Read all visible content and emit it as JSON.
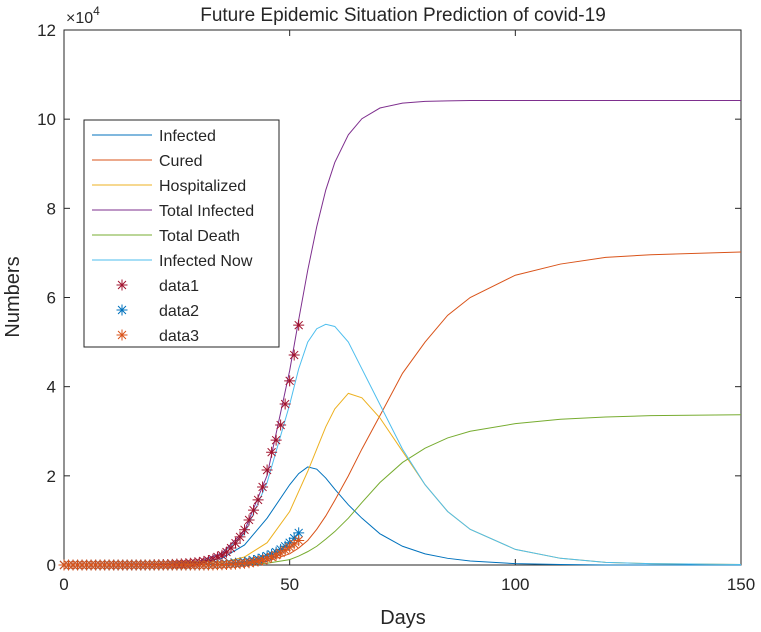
{
  "chart_data": {
    "type": "line",
    "title": "Future Epidemic Situation Prediction of covid-19",
    "x_label": "Days",
    "y_label": "Numbers",
    "y_multiplier": "×10",
    "y_multiplier_power": "4",
    "xlim": [
      0,
      150
    ],
    "ylim": [
      0,
      12
    ],
    "xticks": [
      0,
      50,
      100,
      150
    ],
    "yticks": [
      0,
      2,
      4,
      6,
      8,
      10,
      12
    ],
    "grid": false,
    "legend_position": "west",
    "x": [
      0,
      10,
      20,
      30,
      35,
      40,
      45,
      50,
      52,
      54,
      56,
      58,
      60,
      63,
      66,
      70,
      75,
      80,
      85,
      90,
      100,
      110,
      120,
      130,
      150
    ],
    "series": [
      {
        "name": "Infected",
        "color": "#0072BD",
        "values": [
          0,
          0,
          0,
          0.05,
          0.15,
          0.45,
          1.05,
          1.8,
          2.05,
          2.2,
          2.15,
          1.95,
          1.7,
          1.35,
          1.05,
          0.7,
          0.42,
          0.25,
          0.15,
          0.09,
          0.03,
          0.01,
          0,
          0,
          0
        ]
      },
      {
        "name": "Cured",
        "color": "#D95319",
        "values": [
          0,
          0,
          0,
          0,
          0,
          0.02,
          0.08,
          0.25,
          0.38,
          0.55,
          0.8,
          1.1,
          1.45,
          2.0,
          2.6,
          3.35,
          4.3,
          5.0,
          5.6,
          6.0,
          6.5,
          6.75,
          6.9,
          6.96,
          7.02
        ]
      },
      {
        "name": "Hospitalized",
        "color": "#EDB120",
        "values": [
          0,
          0,
          0,
          0.02,
          0.06,
          0.18,
          0.5,
          1.2,
          1.65,
          2.1,
          2.6,
          3.1,
          3.5,
          3.85,
          3.75,
          3.3,
          2.55,
          1.8,
          1.2,
          0.8,
          0.35,
          0.15,
          0.06,
          0.03,
          0.01
        ]
      },
      {
        "name": "Total Infected",
        "color": "#7E2F8E",
        "values": [
          0,
          0.001,
          0.01,
          0.091,
          0.27,
          0.77,
          2.01,
          4.36,
          5.5,
          6.61,
          7.59,
          8.41,
          9.03,
          9.65,
          10.01,
          10.25,
          10.36,
          10.4,
          10.41,
          10.42,
          10.42,
          10.42,
          10.42,
          10.42,
          10.42
        ]
      },
      {
        "name": "Total Death",
        "color": "#77AC30",
        "values": [
          0,
          0,
          0,
          0,
          0,
          0.01,
          0.04,
          0.12,
          0.2,
          0.3,
          0.42,
          0.58,
          0.75,
          1.05,
          1.4,
          1.85,
          2.3,
          2.62,
          2.85,
          3.0,
          3.17,
          3.27,
          3.32,
          3.35,
          3.37
        ]
      },
      {
        "name": "Infected Now",
        "color": "#4DBEEE",
        "values": [
          0,
          0,
          0,
          0.08,
          0.25,
          0.7,
          1.85,
          3.6,
          4.4,
          5.0,
          5.3,
          5.4,
          5.35,
          5.0,
          4.4,
          3.6,
          2.6,
          1.8,
          1.2,
          0.8,
          0.35,
          0.15,
          0.06,
          0.03,
          0.01
        ]
      },
      {
        "name": "data1",
        "color": "#A2142F",
        "marker": "*",
        "x": [
          0,
          1,
          2,
          3,
          4,
          5,
          6,
          7,
          8,
          9,
          10,
          11,
          12,
          13,
          14,
          15,
          16,
          17,
          18,
          19,
          20,
          21,
          22,
          23,
          24,
          25,
          26,
          27,
          28,
          29,
          30,
          31,
          32,
          33,
          34,
          35,
          36,
          37,
          38,
          39,
          40,
          41,
          42,
          43,
          44,
          45,
          46,
          47,
          48,
          49,
          50,
          51,
          52
        ],
        "values": [
          0,
          0,
          0,
          0,
          0,
          0,
          0,
          0,
          0,
          0,
          0,
          0,
          0,
          0,
          0,
          0,
          0,
          0,
          0,
          0,
          0.005,
          0.005,
          0.01,
          0.01,
          0.015,
          0.02,
          0.025,
          0.03,
          0.04,
          0.05,
          0.06,
          0.08,
          0.1,
          0.13,
          0.18,
          0.22,
          0.29,
          0.38,
          0.49,
          0.63,
          0.79,
          1.01,
          1.23,
          1.46,
          1.75,
          2.13,
          2.53,
          2.8,
          3.14,
          3.61,
          4.13,
          4.71,
          5.38
        ]
      },
      {
        "name": "data2",
        "color": "#0072BD",
        "marker": "*",
        "x": [
          0,
          1,
          2,
          3,
          4,
          5,
          6,
          7,
          8,
          9,
          10,
          11,
          12,
          13,
          14,
          15,
          16,
          17,
          18,
          19,
          20,
          21,
          22,
          23,
          24,
          25,
          26,
          27,
          28,
          29,
          30,
          31,
          32,
          33,
          34,
          35,
          36,
          37,
          38,
          39,
          40,
          41,
          42,
          43,
          44,
          45,
          46,
          47,
          48,
          49,
          50,
          51,
          52
        ],
        "values": [
          0,
          0,
          0,
          0,
          0,
          0,
          0,
          0,
          0,
          0,
          0,
          0,
          0,
          0,
          0,
          0,
          0,
          0,
          0,
          0,
          0,
          0,
          0,
          0,
          0,
          0,
          0,
          0,
          0,
          0,
          0,
          0,
          0.005,
          0.01,
          0.01,
          0.015,
          0.02,
          0.03,
          0.04,
          0.05,
          0.06,
          0.08,
          0.1,
          0.13,
          0.16,
          0.2,
          0.24,
          0.29,
          0.35,
          0.42,
          0.5,
          0.6,
          0.72
        ]
      },
      {
        "name": "data3",
        "color": "#D95319",
        "marker": "*",
        "x": [
          0,
          1,
          2,
          3,
          4,
          5,
          6,
          7,
          8,
          9,
          10,
          11,
          12,
          13,
          14,
          15,
          16,
          17,
          18,
          19,
          20,
          21,
          22,
          23,
          24,
          25,
          26,
          27,
          28,
          29,
          30,
          31,
          32,
          33,
          34,
          35,
          36,
          37,
          38,
          39,
          40,
          41,
          42,
          43,
          44,
          45,
          46,
          47,
          48,
          49,
          50,
          51,
          52
        ],
        "values": [
          0,
          0,
          0,
          0,
          0,
          0,
          0,
          0,
          0,
          0,
          0,
          0,
          0,
          0,
          0,
          0,
          0,
          0,
          0,
          0,
          0,
          0,
          0,
          0,
          0,
          0,
          0,
          0,
          0,
          0,
          0,
          0,
          0,
          0,
          0.005,
          0.005,
          0.01,
          0.015,
          0.02,
          0.03,
          0.04,
          0.05,
          0.07,
          0.09,
          0.11,
          0.14,
          0.18,
          0.22,
          0.27,
          0.33,
          0.4,
          0.47,
          0.55
        ]
      }
    ]
  }
}
